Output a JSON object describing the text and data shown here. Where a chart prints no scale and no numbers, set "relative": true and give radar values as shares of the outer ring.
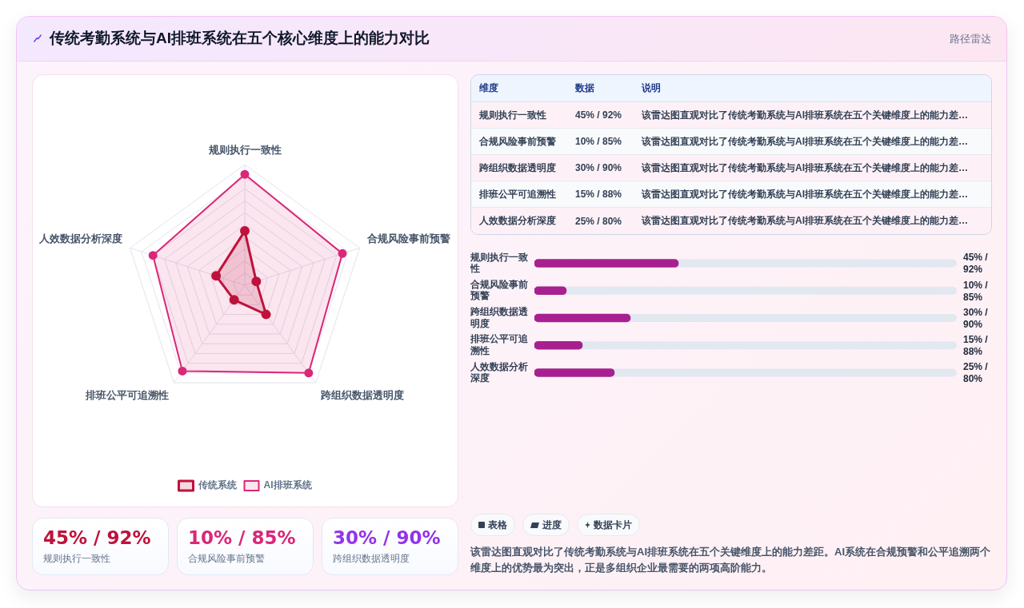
{
  "chart_data": [
    {
      "type": "radar",
      "title": "传统考勤系统与AI排班系统在五个核心维度上的能力对比",
      "categories": [
        "规则执行一致性",
        "合规风险事前预警",
        "跨组织数据透明度",
        "排班公平可追溯性",
        "人效数据分析深度"
      ],
      "series": [
        {
          "name": "传统系统",
          "color": "#be123c",
          "values": [
            0.45,
            0.1,
            0.3,
            0.15,
            0.25
          ]
        },
        {
          "name": "AI排班系统",
          "color": "#db2777",
          "values": [
            0.92,
            0.85,
            0.9,
            0.88,
            0.8
          ]
        }
      ],
      "relative": true,
      "grid": true,
      "legend": "bottom",
      "marker": "circle"
    },
    {
      "type": "other",
      "subtitle": "路径雷达",
      "categories": [
        "规则执行一致性",
        "合规风险事前预警",
        "跨组织数据透明度",
        "排班公平可追溯性",
        "人效数据分析深度"
      ],
      "annotations": [
        "维度",
        "数据",
        "说明",
        "45% / 92%",
        "该雷达图直观对比了传统考勤系统与AI排班系统在五个关键维度上的能力差…",
        "10% / 85%",
        "该雷达图直观对比了传统考勤系统与AI排班系统在五个关键维度上的能力差…",
        "30% / 90%",
        "该雷达图直观对比了传统考勤系统与AI排班系统在五个关键维度上的能力差…",
        "15% / 88%",
        "该雷达图直观对比了传统考勤系统与AI排班系统在五个关键维度上的能力差…",
        "25% / 80%",
        "该雷达图直观对比了传统考勤系统与AI排班系统在五个关键维度上的能力差…"
      ]
    },
    {
      "type": "bar",
      "orientation": "horizontal",
      "categories": [
        "规则执行一致性",
        "合规风险事前预警",
        "跨组织数据透明度",
        "排班公平可追溯性",
        "人效数据分析深度"
      ],
      "values": [
        45,
        10,
        30,
        15,
        25
      ],
      "value_labels": [
        "45% / 92%",
        "10% / 85%",
        "30% / 90%",
        "15% / 88%",
        "25% / 80%"
      ],
      "color": "#a8208f"
    },
    {
      "type": "other",
      "categories": [
        "规则执行一致性",
        "合规风险事前预警",
        "跨组织数据透明度"
      ],
      "annotations": [
        "45% / 92%",
        "10% / 85%",
        "30% / 90%"
      ]
    },
    {
      "type": "other",
      "categories": [
        "表格",
        "进度",
        "数据卡片"
      ],
      "annotations": [
        "该雷达图直观对比了传统考勤系统与AI排班系统在五个关键维度上的能力差距。AI系统在合规预警和公平追溯两个维度上的优势最为突出，正是多组织企业最需要的两项高阶能力。"
      ]
    }
  ]
}
